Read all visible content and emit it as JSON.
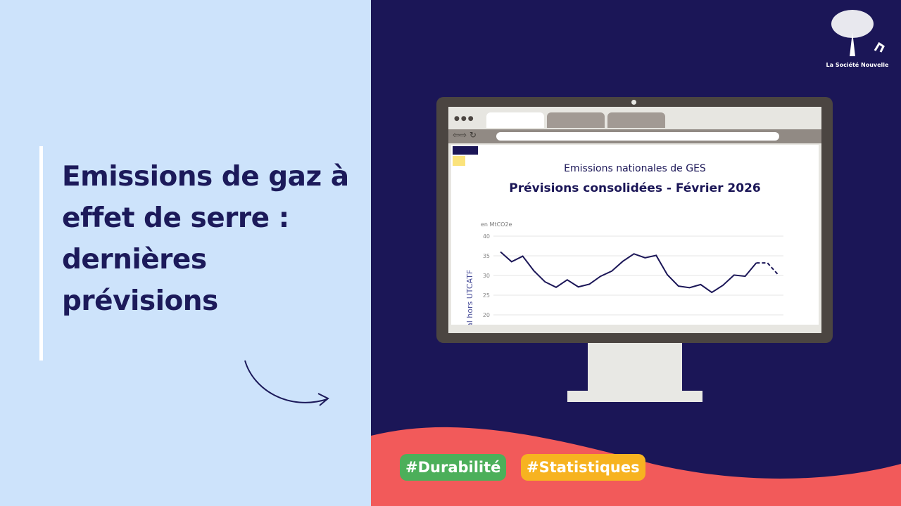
{
  "headline": "Emissions de gaz à effet de serre : dernières prévisions",
  "logo": {
    "text": "La Société Nouvelle"
  },
  "screen_chart": {
    "title": "Emissions nationales de GES",
    "subtitle": "Prévisions consolidées - Février 2026",
    "unit": "en MtCO2e",
    "ylabel": "al hors UTCATF"
  },
  "chart_data": {
    "type": "line",
    "title": "Emissions nationales de GES",
    "subtitle": "Prévisions consolidées - Février 2026",
    "ylabel": "al hors UTCATF",
    "unit": "en MtCO2e",
    "ylim": [
      20,
      40
    ],
    "yticks": [
      40,
      35,
      30,
      25,
      20
    ],
    "grid": true,
    "series": [
      {
        "style": "solid",
        "values": [
          36,
          33.5,
          34.9,
          31.2,
          28.4,
          27,
          28.9,
          27.1,
          27.8,
          29.8,
          31.1,
          33.6,
          35.5,
          34.5,
          35.1,
          30.2,
          27.3,
          26.9,
          27.7,
          25.7,
          27.5,
          30.1,
          29.8,
          33.2
        ]
      },
      {
        "style": "dashed",
        "values": [
          33.2,
          33.2,
          30.1
        ]
      }
    ],
    "color": "#1b1657"
  },
  "tags": [
    {
      "label": "#Durabilité",
      "color": "#4caf5a"
    },
    {
      "label": "#Statistiques",
      "color": "#f7b320"
    }
  ],
  "colors": {
    "left_bg": "#cde3fb",
    "right_bg": "#1b1657",
    "wave": "#f25a5a"
  }
}
